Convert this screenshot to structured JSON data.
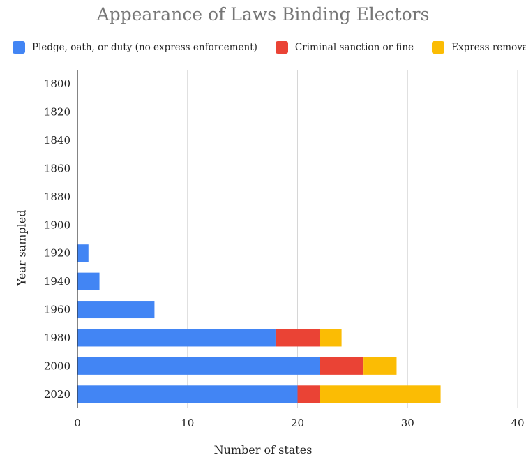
{
  "chart_data": {
    "type": "bar",
    "orientation": "horizontal",
    "stacked": true,
    "title": "Appearance of Laws Binding Electors",
    "xlabel": "Number of states",
    "ylabel": "Year sampled",
    "categories": [
      "1800",
      "1820",
      "1840",
      "1860",
      "1880",
      "1900",
      "1920",
      "1940",
      "1960",
      "1980",
      "2000",
      "2020"
    ],
    "series": [
      {
        "name": "Pledge, oath, or duty (no express enforcement)",
        "color": "#4285F4",
        "values": [
          0,
          0,
          0,
          0,
          0,
          0,
          1,
          2,
          7,
          18,
          22,
          20
        ]
      },
      {
        "name": "Criminal sanction or fine",
        "color": "#EA4335",
        "values": [
          0,
          0,
          0,
          0,
          0,
          0,
          0,
          0,
          0,
          4,
          4,
          2
        ]
      },
      {
        "name": "Express removal",
        "color": "#FBBC04",
        "values": [
          0,
          0,
          0,
          0,
          0,
          0,
          0,
          0,
          0,
          2,
          3,
          11
        ]
      }
    ],
    "xlim": [
      0,
      40
    ],
    "xticks": [
      "0",
      "10",
      "20",
      "30",
      "40"
    ],
    "grid": true,
    "legend_position": "top"
  }
}
